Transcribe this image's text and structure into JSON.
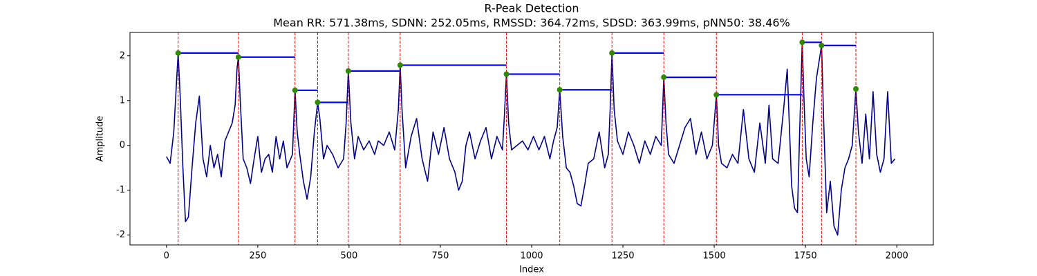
{
  "chart_data": {
    "type": "line",
    "title": "R-Peak Detection",
    "subtitle": "Mean RR: 571.38ms, SDNN: 252.05ms, RMSSD: 364.72ms, SDSD: 363.99ms, pNN50: 38.46%",
    "xlabel": "Index",
    "ylabel": "Amplitude",
    "xlim": [
      -100,
      2100
    ],
    "ylim": [
      -2.22,
      2.52
    ],
    "xticks": [
      0,
      250,
      500,
      750,
      1000,
      1250,
      1500,
      1750,
      2000
    ],
    "yticks": [
      -2,
      -1,
      0,
      1,
      2
    ],
    "x": [
      0,
      10,
      20,
      28,
      32,
      38,
      45,
      52,
      60,
      70,
      80,
      90,
      100,
      110,
      120,
      130,
      140,
      150,
      160,
      170,
      180,
      188,
      193,
      197,
      202,
      210,
      220,
      230,
      240,
      250,
      260,
      270,
      280,
      290,
      300,
      310,
      320,
      330,
      345,
      352,
      358,
      365,
      375,
      385,
      395,
      405,
      414,
      420,
      430,
      440,
      455,
      470,
      485,
      492,
      498,
      505,
      515,
      525,
      540,
      555,
      570,
      580,
      595,
      610,
      625,
      635,
      640,
      645,
      655,
      670,
      685,
      700,
      715,
      730,
      745,
      760,
      775,
      790,
      800,
      810,
      820,
      830,
      845,
      860,
      875,
      890,
      905,
      920,
      925,
      931,
      937,
      945,
      960,
      975,
      990,
      1005,
      1020,
      1035,
      1050,
      1060,
      1070,
      1077,
      1085,
      1095,
      1105,
      1115,
      1125,
      1135,
      1145,
      1155,
      1170,
      1185,
      1200,
      1210,
      1215,
      1220,
      1226,
      1235,
      1250,
      1265,
      1280,
      1295,
      1310,
      1325,
      1340,
      1355,
      1362,
      1368,
      1375,
      1390,
      1405,
      1420,
      1435,
      1450,
      1465,
      1480,
      1495,
      1506,
      1512,
      1520,
      1535,
      1550,
      1565,
      1580,
      1595,
      1610,
      1625,
      1640,
      1650,
      1660,
      1675,
      1690,
      1700,
      1712,
      1720,
      1728,
      1734,
      1741,
      1746,
      1752,
      1760,
      1770,
      1780,
      1794,
      1800,
      1808,
      1818,
      1828,
      1838,
      1848,
      1858,
      1868,
      1878,
      1888,
      1895,
      1905,
      1915,
      1925,
      1935,
      1945,
      1955,
      1965,
      1975,
      1985,
      1995
    ],
    "series": [
      {
        "color": "#00008b",
        "values": [
          -0.25,
          -0.4,
          0.3,
          1.5,
          2.06,
          1.0,
          -0.5,
          -1.7,
          -1.6,
          -0.5,
          0.5,
          1.1,
          -0.3,
          -0.7,
          0.0,
          -0.5,
          -0.2,
          -0.7,
          0.1,
          0.3,
          0.5,
          0.9,
          1.7,
          1.97,
          1.0,
          -0.3,
          -0.5,
          -0.85,
          -0.3,
          0.2,
          -0.6,
          -0.3,
          -0.2,
          -0.6,
          0.2,
          -0.3,
          0.1,
          -0.5,
          -0.2,
          1.23,
          0.3,
          -0.2,
          -0.8,
          -1.2,
          -0.7,
          0.3,
          0.96,
          0.6,
          -0.3,
          0.0,
          -0.2,
          -0.5,
          -0.3,
          0.5,
          1.66,
          0.5,
          -0.3,
          0.2,
          -0.1,
          0.1,
          -0.2,
          0.1,
          0.0,
          0.3,
          -0.1,
          0.8,
          1.79,
          0.8,
          -0.5,
          0.2,
          0.6,
          -0.3,
          -0.8,
          0.3,
          -0.2,
          0.4,
          -0.3,
          -0.6,
          -1.0,
          -0.8,
          0.0,
          0.3,
          -0.3,
          0.1,
          0.4,
          -0.3,
          0.2,
          -0.1,
          0.6,
          1.59,
          0.5,
          -0.1,
          0.0,
          0.1,
          -0.1,
          0.2,
          -0.1,
          0.2,
          -0.3,
          0.1,
          0.4,
          1.24,
          0.2,
          -0.5,
          -0.6,
          -0.9,
          -1.3,
          -1.35,
          -0.9,
          -0.4,
          -0.3,
          0.3,
          -0.5,
          -0.2,
          0.8,
          2.06,
          0.8,
          0.1,
          -0.2,
          0.3,
          0.0,
          -0.4,
          0.1,
          -0.2,
          0.2,
          0.0,
          1.52,
          0.5,
          -0.2,
          -0.4,
          0.0,
          0.4,
          0.6,
          -0.2,
          0.3,
          -0.3,
          0.0,
          1.13,
          0.0,
          -0.4,
          -0.5,
          -0.2,
          -0.4,
          0.8,
          -0.3,
          -0.6,
          0.5,
          -0.4,
          0.9,
          -0.3,
          -0.4,
          0.8,
          1.7,
          -0.9,
          -1.4,
          -1.5,
          0.3,
          2.3,
          1.0,
          -0.3,
          -0.7,
          0.5,
          1.5,
          2.23,
          0.5,
          -1.5,
          -0.8,
          -1.8,
          -2.0,
          -1.0,
          -0.5,
          -0.3,
          0.0,
          1.26,
          0.3,
          -0.4,
          0.7,
          -0.3,
          1.2,
          -0.2,
          -0.6,
          -0.3,
          1.2,
          -0.4,
          -0.3
        ]
      }
    ],
    "peaks": {
      "x": [
        32,
        197,
        352,
        414,
        498,
        640,
        931,
        1077,
        1220,
        1362,
        1506,
        1741,
        1794,
        1888
      ],
      "values": [
        2.06,
        1.97,
        1.23,
        0.96,
        1.66,
        1.79,
        1.59,
        1.24,
        2.06,
        1.52,
        1.13,
        2.3,
        2.23,
        1.26
      ],
      "color": "#2e8b00",
      "line_color": "#ff0000",
      "level_color": "#0000ff"
    }
  }
}
